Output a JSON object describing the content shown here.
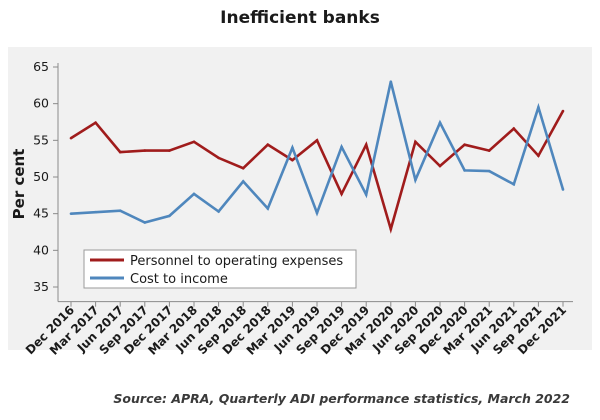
{
  "chart_data": {
    "type": "line",
    "title": "Inefficient banks",
    "ylabel": "Per cent",
    "xlabel": "",
    "ylim": [
      33,
      66
    ],
    "yticks": [
      35,
      40,
      45,
      50,
      55,
      60,
      65
    ],
    "categories": [
      "Dec 2016",
      "Mar 2017",
      "Jun 2017",
      "Sep 2017",
      "Dec 2017",
      "Mar 2018",
      "Jun 2018",
      "Sep 2018",
      "Dec 2018",
      "Mar 2019",
      "Jun 2019",
      "Sep 2019",
      "Dec 2019",
      "Mar 2020",
      "Jun 2020",
      "Sep 2020",
      "Dec 2020",
      "Mar 2021",
      "Jun 2021",
      "Sep 2021",
      "Dec 2021"
    ],
    "series": [
      {
        "name": "Personnel to operating expenses",
        "color": "#a01c1c",
        "values": [
          55.3,
          57.4,
          53.4,
          53.6,
          53.6,
          54.8,
          52.6,
          51.2,
          54.4,
          52.3,
          55.0,
          47.7,
          54.4,
          42.9,
          54.8,
          51.5,
          54.4,
          53.6,
          56.6,
          52.9,
          59.0
        ]
      },
      {
        "name": "Cost to income",
        "color": "#4f87bd",
        "values": [
          45.0,
          45.2,
          45.4,
          43.8,
          44.7,
          47.7,
          45.3,
          49.4,
          45.7,
          54.0,
          45.1,
          54.1,
          47.6,
          63.0,
          49.6,
          57.4,
          50.9,
          50.8,
          49.0,
          59.5,
          48.3
        ]
      }
    ],
    "legend": "bottom-left",
    "grid": false
  },
  "source": "Source: APRA, Quarterly ADI performance statistics, March 2022"
}
